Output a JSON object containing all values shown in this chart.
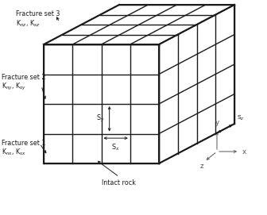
{
  "line_color": "#1a1a1a",
  "n_divisions": 4,
  "labels": {
    "fracture3_title": "Fracture set 3",
    "fracture3_sub": "K$_{nz}$, K$_{sz}$",
    "fracture2_title": "Fracture set 2",
    "fracture2_sub": "K$_{ny}$, K$_{sy}$",
    "fracture1_title": "Fracture set 1",
    "fracture1_sub": "K$_{nx}$, K$_{sx}$",
    "intact_rock": "Intact rock",
    "sy": "S$_y$",
    "sx": "S$_x$",
    "sz": "S$_{z}$",
    "axis_x": "x",
    "axis_y": "y",
    "axis_z": "z"
  },
  "font_size": 5.8
}
